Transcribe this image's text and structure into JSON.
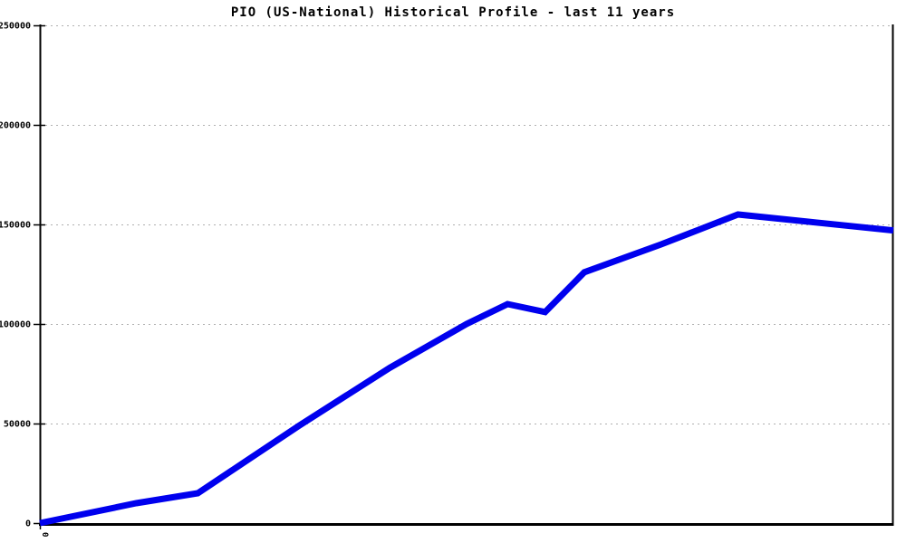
{
  "title": "PIO (US-National) Historical Profile - last 11 years",
  "colors": {
    "line": "#0000ee",
    "grid": "#b0b0b0",
    "axis": "#000000",
    "background": "#ffffff",
    "title_color": "#000000"
  },
  "chart_data": {
    "type": "line",
    "title": "PIO (US-National) Historical Profile - last 11 years",
    "xlabel": "",
    "ylabel": "",
    "ylim": [
      0,
      250000
    ],
    "yticks": [
      0,
      50000,
      100000,
      150000,
      200000,
      250000
    ],
    "ytick_labels": [
      "0",
      "50000",
      "100000",
      "150000",
      "200000",
      "250000"
    ],
    "visible_xtick_labels": [
      "0"
    ],
    "years_span": 11,
    "grid": "dotted-horizontal",
    "legend": "none",
    "series": [
      {
        "name": "PIO US-National historical profile",
        "points": [
          {
            "x_frac": 0.0,
            "value": 0
          },
          {
            "x_frac": 0.113,
            "value": 10000
          },
          {
            "x_frac": 0.185,
            "value": 15000
          },
          {
            "x_frac": 0.304,
            "value": 49000
          },
          {
            "x_frac": 0.41,
            "value": 78000
          },
          {
            "x_frac": 0.5,
            "value": 100000
          },
          {
            "x_frac": 0.548,
            "value": 110000
          },
          {
            "x_frac": 0.592,
            "value": 106000
          },
          {
            "x_frac": 0.638,
            "value": 126000
          },
          {
            "x_frac": 0.728,
            "value": 140000
          },
          {
            "x_frac": 0.818,
            "value": 155000
          },
          {
            "x_frac": 0.909,
            "value": 151000
          },
          {
            "x_frac": 1.0,
            "value": 147000
          }
        ]
      }
    ]
  }
}
